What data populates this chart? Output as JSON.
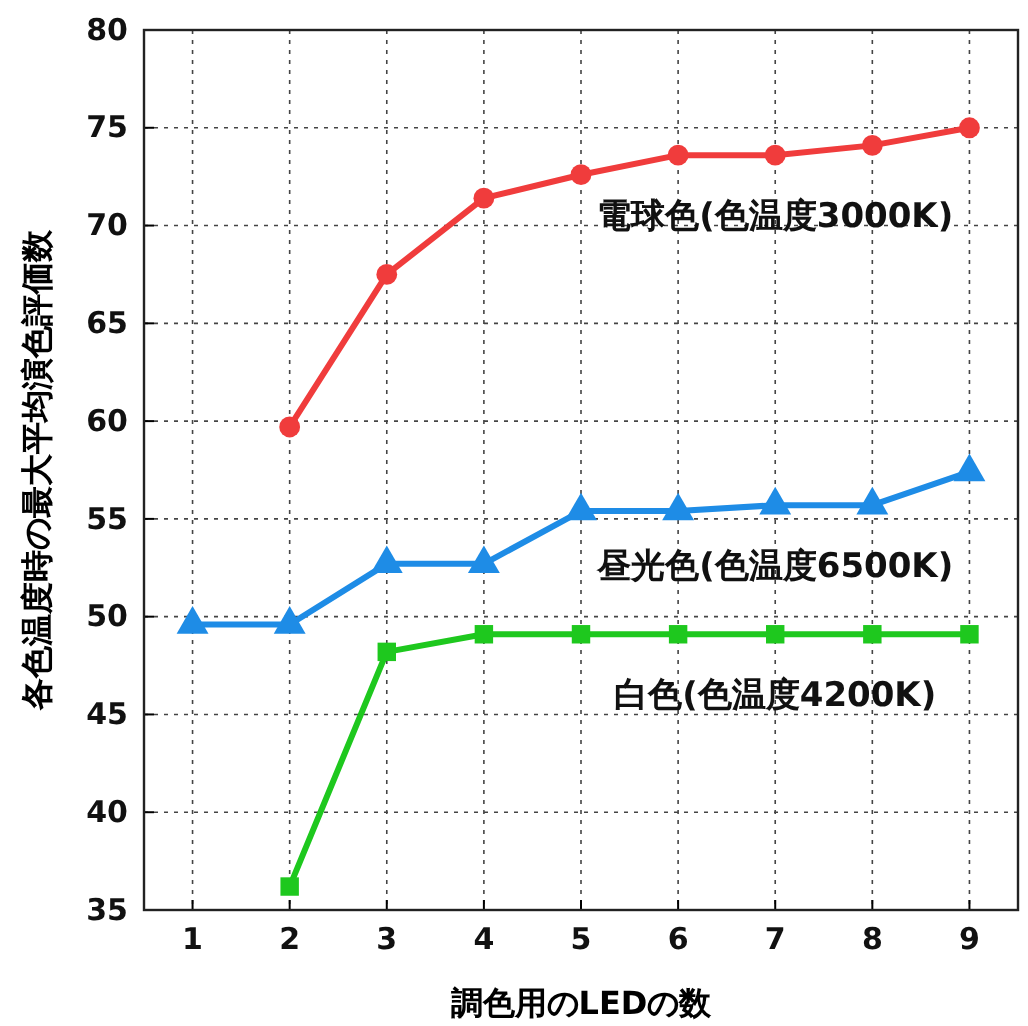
{
  "chart_data": {
    "type": "line",
    "xlabel": "調色用のLEDの数",
    "ylabel": "各色温度時の最大平均演色評価数",
    "x": [
      1,
      2,
      3,
      4,
      5,
      6,
      7,
      8,
      9
    ],
    "series": [
      {
        "name": "電球色(色温度3000K)",
        "color": "#f03c3c",
        "marker": "circle",
        "values": [
          null,
          59.7,
          67.5,
          71.4,
          72.6,
          73.6,
          73.6,
          74.1,
          75.0
        ]
      },
      {
        "name": "昼光色(色温度6500K)",
        "color": "#1e8ce6",
        "marker": "triangle",
        "values": [
          49.6,
          49.6,
          52.7,
          52.7,
          55.4,
          55.4,
          55.7,
          55.7,
          57.4
        ]
      },
      {
        "name": "白色(色温度4200K)",
        "color": "#1ec81e",
        "marker": "square",
        "values": [
          null,
          36.2,
          48.2,
          49.1,
          49.1,
          49.1,
          49.1,
          49.1,
          49.1
        ]
      }
    ],
    "xlim": [
      0.5,
      9.5
    ],
    "xticks": [
      1,
      2,
      3,
      4,
      5,
      6,
      7,
      8,
      9
    ],
    "ylim": [
      35,
      80
    ],
    "yticks": [
      35,
      40,
      45,
      50,
      55,
      60,
      65,
      70,
      75,
      80
    ],
    "grid": true,
    "line_style": "solid"
  }
}
